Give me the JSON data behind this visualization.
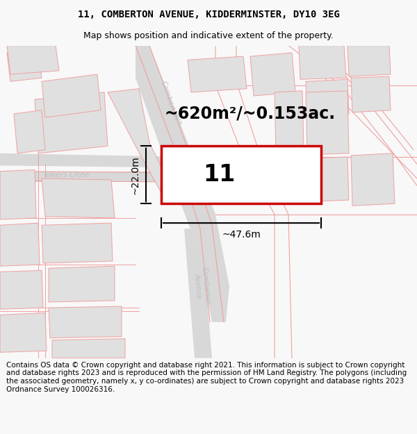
{
  "title_line1": "11, COMBERTON AVENUE, KIDDERMINSTER, DY10 3EG",
  "title_line2": "Map shows position and indicative extent of the property.",
  "area_text": "~620m²/~0.153ac.",
  "width_label": "~47.6m",
  "height_label": "~22.0m",
  "property_number": "11",
  "footer_text": "Contains OS data © Crown copyright and database right 2021. This information is subject to Crown copyright and database rights 2023 and is reproduced with the permission of HM Land Registry. The polygons (including the associated geometry, namely x, y co-ordinates) are subject to Crown copyright and database rights 2023 Ordnance Survey 100026316.",
  "bg_color": "#f8f8f8",
  "map_bg": "#ffffff",
  "road_fill": "#d8d8d8",
  "building_fill": "#e0e0e0",
  "building_edge": "#f0a0a0",
  "road_line_color": "#f0a0a0",
  "property_fill": "#ffffff",
  "property_edge": "#cc0000",
  "label_color": "#c0c0c0",
  "title_fontsize": 10,
  "subtitle_fontsize": 9,
  "area_fontsize": 17,
  "number_fontsize": 24,
  "footer_fontsize": 7.5
}
